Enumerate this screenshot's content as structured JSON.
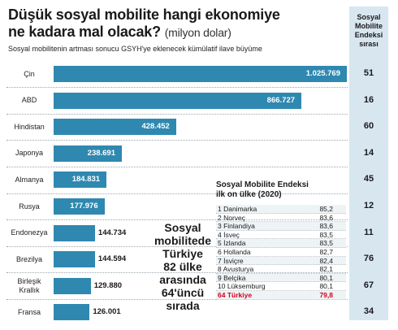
{
  "header": {
    "title_line1": "Düşük sosyal mobilite hangi ekonomiye",
    "title_line2": "ne kadara mal olacak?",
    "title_unit": "(milyon dolar)",
    "subtitle": "Sosyal mobilitenin artması sonucu GSYH'ye eklenecek kümülatif ilave büyüme"
  },
  "index_column": {
    "header": [
      "Sosyal",
      "Mobilite",
      "Endeksi",
      "sırası"
    ]
  },
  "chart_data": {
    "type": "bar",
    "orientation": "horizontal",
    "categories": [
      "Çin",
      "ABD",
      "Hindistan",
      "Japonya",
      "Almanya",
      "Rusya",
      "Endonezya",
      "Brezilya",
      "Birleşik Krallık",
      "Fransa"
    ],
    "category_lines": [
      [
        "Çin"
      ],
      [
        "ABD"
      ],
      [
        "Hindistan"
      ],
      [
        "Japonya"
      ],
      [
        "Almanya"
      ],
      [
        "Rusya"
      ],
      [
        "Endonezya"
      ],
      [
        "Brezilya"
      ],
      [
        "Birleşik",
        "Krallık"
      ],
      [
        "Fransa"
      ]
    ],
    "values": [
      1025769,
      866727,
      428452,
      238691,
      184831,
      177976,
      144734,
      144594,
      129880,
      126001
    ],
    "value_labels": [
      "1.025.769",
      "866.727",
      "428.452",
      "238.691",
      "184.831",
      "177.976",
      "144.734",
      "144.594",
      "129.880",
      "126.001"
    ],
    "index_ranks": [
      51,
      16,
      60,
      14,
      45,
      12,
      11,
      76,
      67,
      34
    ],
    "bar_color": "#2f88b0"
  },
  "note": [
    "Sosyal",
    "mobilitede",
    "Türkiye",
    "82 ülke",
    "arasında",
    "64'üncü",
    "sırada"
  ],
  "top10_table": {
    "title": [
      "Sosyal Mobilite Endeksi",
      "ilk on ülke (2020)"
    ],
    "rows": [
      {
        "name": "1 Danimarka",
        "value": "85,2"
      },
      {
        "name": "2 Norveç",
        "value": "83,6"
      },
      {
        "name": "3 Finlandiya",
        "value": "83,6"
      },
      {
        "name": "4 İsveç",
        "value": "83,5"
      },
      {
        "name": "5 İzlanda",
        "value": "83,5"
      },
      {
        "name": "6 Hollanda",
        "value": "82,7"
      },
      {
        "name": "7 İsviçre",
        "value": "82,4"
      },
      {
        "name": "8 Avusturya",
        "value": "82,1"
      },
      {
        "name": "9 Belçika",
        "value": "80,1"
      },
      {
        "name": "10 Lüksemburg",
        "value": "80,1"
      },
      {
        "name": "64 Türkiye",
        "value": "79,8"
      }
    ],
    "highlight_color": "#d0021b"
  }
}
